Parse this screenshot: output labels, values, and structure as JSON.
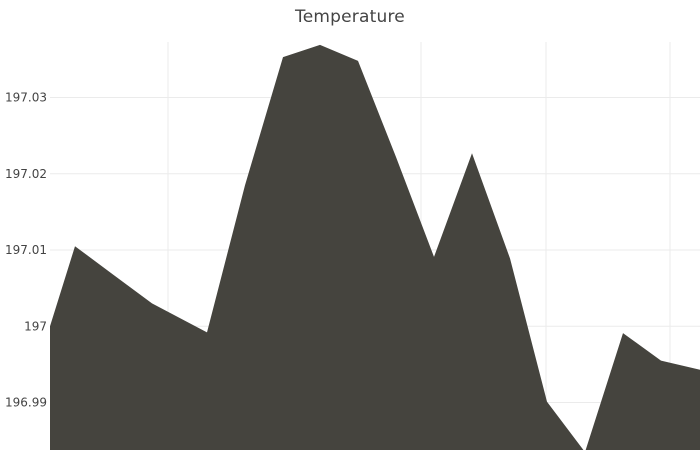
{
  "chart_data": {
    "type": "area",
    "title": "Temperature",
    "xlabel": "",
    "ylabel": "",
    "x": [
      0,
      1,
      2,
      3,
      4,
      5,
      6,
      7,
      8,
      9,
      10,
      11,
      12,
      13,
      14,
      15,
      16,
      17
    ],
    "values": [
      197.0,
      197.0105,
      197.0067,
      197.003,
      196.9992,
      197.0185,
      197.0353,
      197.0369,
      197.0348,
      197.0222,
      197.0091,
      197.0227,
      197.0089,
      196.9901,
      196.9835,
      196.9991,
      196.9955,
      196.9943
    ],
    "ylim": [
      196.9835,
      197.0373
    ],
    "y_ticks": [
      196.99,
      197,
      197.01,
      197.02,
      197.03
    ],
    "y_tick_labels": [
      "196.99",
      "197",
      "197.01",
      "197.02",
      "197.03"
    ],
    "grid": true,
    "legend": "none",
    "fill_color": "#45443e",
    "grid_color": "#ebebeb"
  }
}
